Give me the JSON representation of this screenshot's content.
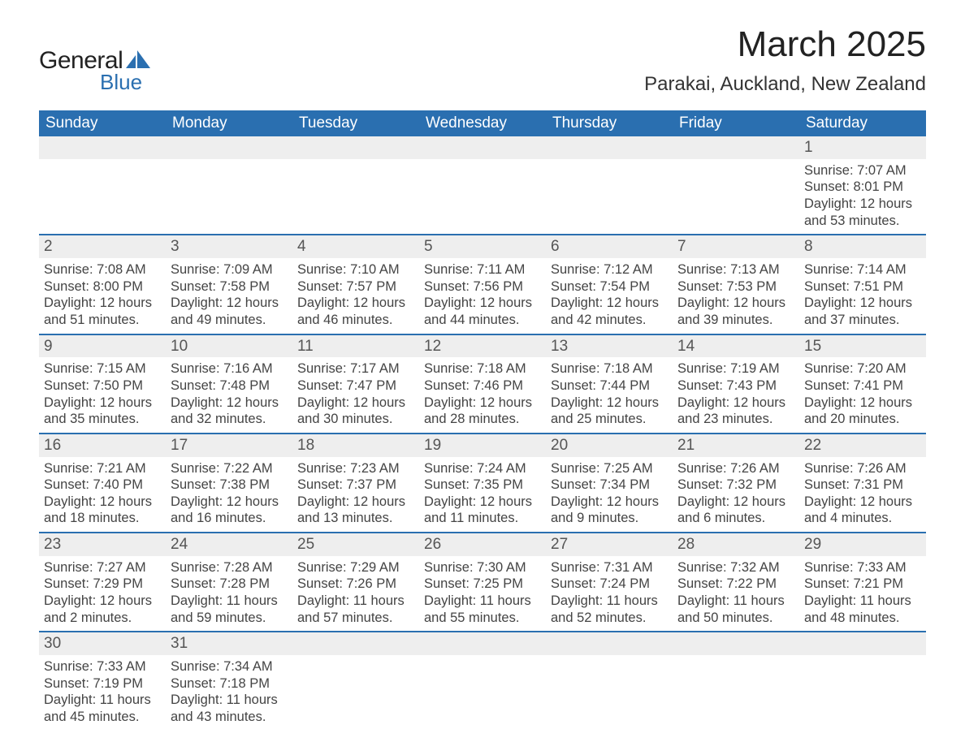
{
  "logo": {
    "word1": "General",
    "word2": "Blue"
  },
  "title": "March 2025",
  "location": "Parakai, Auckland, New Zealand",
  "colors": {
    "header_bg": "#2a6fb0",
    "header_fg": "#ffffff",
    "daynum_bg": "#eeeeee",
    "row_divider": "#2a6fb0",
    "text": "#444444",
    "logo_accent": "#2a6fb0"
  },
  "day_headers": [
    "Sunday",
    "Monday",
    "Tuesday",
    "Wednesday",
    "Thursday",
    "Friday",
    "Saturday"
  ],
  "weeks": [
    [
      {
        "empty": true
      },
      {
        "empty": true
      },
      {
        "empty": true
      },
      {
        "empty": true
      },
      {
        "empty": true
      },
      {
        "empty": true
      },
      {
        "day": "1",
        "sunrise": "Sunrise: 7:07 AM",
        "sunset": "Sunset: 8:01 PM",
        "day1": "Daylight: 12 hours",
        "day2": "and 53 minutes."
      }
    ],
    [
      {
        "day": "2",
        "sunrise": "Sunrise: 7:08 AM",
        "sunset": "Sunset: 8:00 PM",
        "day1": "Daylight: 12 hours",
        "day2": "and 51 minutes."
      },
      {
        "day": "3",
        "sunrise": "Sunrise: 7:09 AM",
        "sunset": "Sunset: 7:58 PM",
        "day1": "Daylight: 12 hours",
        "day2": "and 49 minutes."
      },
      {
        "day": "4",
        "sunrise": "Sunrise: 7:10 AM",
        "sunset": "Sunset: 7:57 PM",
        "day1": "Daylight: 12 hours",
        "day2": "and 46 minutes."
      },
      {
        "day": "5",
        "sunrise": "Sunrise: 7:11 AM",
        "sunset": "Sunset: 7:56 PM",
        "day1": "Daylight: 12 hours",
        "day2": "and 44 minutes."
      },
      {
        "day": "6",
        "sunrise": "Sunrise: 7:12 AM",
        "sunset": "Sunset: 7:54 PM",
        "day1": "Daylight: 12 hours",
        "day2": "and 42 minutes."
      },
      {
        "day": "7",
        "sunrise": "Sunrise: 7:13 AM",
        "sunset": "Sunset: 7:53 PM",
        "day1": "Daylight: 12 hours",
        "day2": "and 39 minutes."
      },
      {
        "day": "8",
        "sunrise": "Sunrise: 7:14 AM",
        "sunset": "Sunset: 7:51 PM",
        "day1": "Daylight: 12 hours",
        "day2": "and 37 minutes."
      }
    ],
    [
      {
        "day": "9",
        "sunrise": "Sunrise: 7:15 AM",
        "sunset": "Sunset: 7:50 PM",
        "day1": "Daylight: 12 hours",
        "day2": "and 35 minutes."
      },
      {
        "day": "10",
        "sunrise": "Sunrise: 7:16 AM",
        "sunset": "Sunset: 7:48 PM",
        "day1": "Daylight: 12 hours",
        "day2": "and 32 minutes."
      },
      {
        "day": "11",
        "sunrise": "Sunrise: 7:17 AM",
        "sunset": "Sunset: 7:47 PM",
        "day1": "Daylight: 12 hours",
        "day2": "and 30 minutes."
      },
      {
        "day": "12",
        "sunrise": "Sunrise: 7:18 AM",
        "sunset": "Sunset: 7:46 PM",
        "day1": "Daylight: 12 hours",
        "day2": "and 28 minutes."
      },
      {
        "day": "13",
        "sunrise": "Sunrise: 7:18 AM",
        "sunset": "Sunset: 7:44 PM",
        "day1": "Daylight: 12 hours",
        "day2": "and 25 minutes."
      },
      {
        "day": "14",
        "sunrise": "Sunrise: 7:19 AM",
        "sunset": "Sunset: 7:43 PM",
        "day1": "Daylight: 12 hours",
        "day2": "and 23 minutes."
      },
      {
        "day": "15",
        "sunrise": "Sunrise: 7:20 AM",
        "sunset": "Sunset: 7:41 PM",
        "day1": "Daylight: 12 hours",
        "day2": "and 20 minutes."
      }
    ],
    [
      {
        "day": "16",
        "sunrise": "Sunrise: 7:21 AM",
        "sunset": "Sunset: 7:40 PM",
        "day1": "Daylight: 12 hours",
        "day2": "and 18 minutes."
      },
      {
        "day": "17",
        "sunrise": "Sunrise: 7:22 AM",
        "sunset": "Sunset: 7:38 PM",
        "day1": "Daylight: 12 hours",
        "day2": "and 16 minutes."
      },
      {
        "day": "18",
        "sunrise": "Sunrise: 7:23 AM",
        "sunset": "Sunset: 7:37 PM",
        "day1": "Daylight: 12 hours",
        "day2": "and 13 minutes."
      },
      {
        "day": "19",
        "sunrise": "Sunrise: 7:24 AM",
        "sunset": "Sunset: 7:35 PM",
        "day1": "Daylight: 12 hours",
        "day2": "and 11 minutes."
      },
      {
        "day": "20",
        "sunrise": "Sunrise: 7:25 AM",
        "sunset": "Sunset: 7:34 PM",
        "day1": "Daylight: 12 hours",
        "day2": "and 9 minutes."
      },
      {
        "day": "21",
        "sunrise": "Sunrise: 7:26 AM",
        "sunset": "Sunset: 7:32 PM",
        "day1": "Daylight: 12 hours",
        "day2": "and 6 minutes."
      },
      {
        "day": "22",
        "sunrise": "Sunrise: 7:26 AM",
        "sunset": "Sunset: 7:31 PM",
        "day1": "Daylight: 12 hours",
        "day2": "and 4 minutes."
      }
    ],
    [
      {
        "day": "23",
        "sunrise": "Sunrise: 7:27 AM",
        "sunset": "Sunset: 7:29 PM",
        "day1": "Daylight: 12 hours",
        "day2": "and 2 minutes."
      },
      {
        "day": "24",
        "sunrise": "Sunrise: 7:28 AM",
        "sunset": "Sunset: 7:28 PM",
        "day1": "Daylight: 11 hours",
        "day2": "and 59 minutes."
      },
      {
        "day": "25",
        "sunrise": "Sunrise: 7:29 AM",
        "sunset": "Sunset: 7:26 PM",
        "day1": "Daylight: 11 hours",
        "day2": "and 57 minutes."
      },
      {
        "day": "26",
        "sunrise": "Sunrise: 7:30 AM",
        "sunset": "Sunset: 7:25 PM",
        "day1": "Daylight: 11 hours",
        "day2": "and 55 minutes."
      },
      {
        "day": "27",
        "sunrise": "Sunrise: 7:31 AM",
        "sunset": "Sunset: 7:24 PM",
        "day1": "Daylight: 11 hours",
        "day2": "and 52 minutes."
      },
      {
        "day": "28",
        "sunrise": "Sunrise: 7:32 AM",
        "sunset": "Sunset: 7:22 PM",
        "day1": "Daylight: 11 hours",
        "day2": "and 50 minutes."
      },
      {
        "day": "29",
        "sunrise": "Sunrise: 7:33 AM",
        "sunset": "Sunset: 7:21 PM",
        "day1": "Daylight: 11 hours",
        "day2": "and 48 minutes."
      }
    ],
    [
      {
        "day": "30",
        "sunrise": "Sunrise: 7:33 AM",
        "sunset": "Sunset: 7:19 PM",
        "day1": "Daylight: 11 hours",
        "day2": "and 45 minutes."
      },
      {
        "day": "31",
        "sunrise": "Sunrise: 7:34 AM",
        "sunset": "Sunset: 7:18 PM",
        "day1": "Daylight: 11 hours",
        "day2": "and 43 minutes."
      },
      {
        "empty": true
      },
      {
        "empty": true
      },
      {
        "empty": true
      },
      {
        "empty": true
      },
      {
        "empty": true
      }
    ]
  ]
}
